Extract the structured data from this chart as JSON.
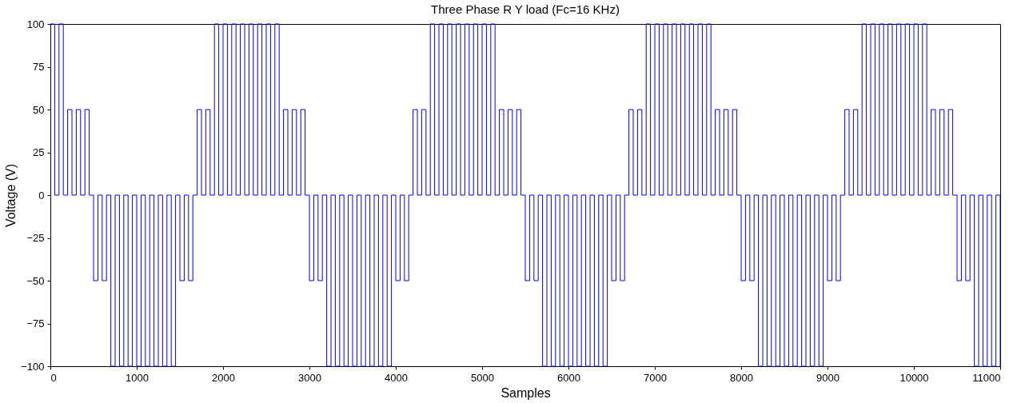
{
  "chart_data": {
    "type": "step",
    "title": "Three Phase R Y load (Fc=16 KHz)",
    "xlabel": "Samples",
    "ylabel": "Voltage (V)",
    "xlim": [
      0,
      11000
    ],
    "ylim": [
      -100,
      100
    ],
    "xticks": [
      0,
      1000,
      2000,
      3000,
      4000,
      5000,
      6000,
      7000,
      8000,
      9000,
      10000,
      11000
    ],
    "yticks": [
      -100,
      -75,
      -50,
      -25,
      0,
      25,
      50,
      75,
      100
    ],
    "grid": false,
    "line_style": "solid",
    "series": [
      {
        "color": "#0000ff",
        "x": [
          0,
          50,
          100,
          150,
          200,
          250,
          300,
          350,
          400,
          450,
          500,
          550,
          600,
          650,
          700,
          750,
          800,
          850,
          900,
          950,
          1000,
          1050,
          1100,
          1150,
          1200,
          1250,
          1300,
          1350,
          1400,
          1450,
          1500,
          1550,
          1600,
          1650,
          1700,
          1750,
          1800,
          1850,
          1900,
          1950,
          2000,
          2050,
          2100,
          2150,
          2200,
          2250,
          2300,
          2350,
          2400,
          2450,
          2500,
          2550,
          2600,
          2650,
          2700,
          2750,
          2800,
          2850,
          2900,
          2950,
          3000,
          3050,
          3100,
          3150,
          3200,
          3250,
          3300,
          3350,
          3400,
          3450,
          3500,
          3550,
          3600,
          3650,
          3700,
          3750,
          3800,
          3850,
          3900,
          3950,
          4000,
          4050,
          4100,
          4150,
          4200,
          4250,
          4300,
          4350,
          4400,
          4450,
          4500,
          4550,
          4600,
          4650,
          4700,
          4750,
          4800,
          4850,
          4900,
          4950,
          5000,
          5050,
          5100,
          5150,
          5200,
          5250,
          5300,
          5350,
          5400,
          5450,
          5500,
          5550,
          5600,
          5650,
          5700,
          5750,
          5800,
          5850,
          5900,
          5950,
          6000,
          6050,
          6100,
          6150,
          6200,
          6250,
          6300,
          6350,
          6400,
          6450,
          6500,
          6550,
          6600,
          6650,
          6700,
          6750,
          6800,
          6850,
          6900,
          6950,
          7000,
          7050,
          7100,
          7150,
          7200,
          7250,
          7300,
          7350,
          7400,
          7450,
          7500,
          7550,
          7600,
          7650,
          7700,
          7750,
          7800,
          7850,
          7900,
          7950,
          8000,
          8050,
          8100,
          8150,
          8200,
          8250,
          8300,
          8350,
          8400,
          8450,
          8500,
          8550,
          8600,
          8650,
          8700,
          8750,
          8800,
          8850,
          8900,
          8950,
          9000,
          9050,
          9100,
          9150,
          9200,
          9250,
          9300,
          9350,
          9400,
          9450,
          9500,
          9550,
          9600,
          9650,
          9700,
          9750,
          9800,
          9850,
          9900,
          9950,
          10000,
          10050,
          10100,
          10150,
          10200,
          10250,
          10300,
          10350,
          10400,
          10450,
          10500,
          10550,
          10600,
          10650,
          10700,
          10750,
          10800,
          10850,
          10900,
          10950,
          11000
        ],
        "values": [
          100,
          0,
          100,
          0,
          50,
          0,
          50,
          0,
          50,
          0,
          -50,
          0,
          -50,
          0,
          -100,
          0,
          -100,
          0,
          -100,
          0,
          -100,
          0,
          -100,
          0,
          -100,
          0,
          -100,
          0,
          -100,
          0,
          -50,
          0,
          -50,
          0,
          50,
          0,
          50,
          0,
          100,
          0,
          100,
          0,
          100,
          0,
          100,
          0,
          100,
          0,
          100,
          0,
          100,
          0,
          100,
          0,
          50,
          0,
          50,
          0,
          50,
          0,
          -50,
          0,
          -50,
          0,
          -100,
          0,
          -100,
          0,
          -100,
          0,
          -100,
          0,
          -100,
          0,
          -100,
          0,
          -100,
          0,
          -100,
          0,
          -50,
          0,
          -50,
          0,
          50,
          0,
          50,
          0,
          100,
          0,
          100,
          0,
          100,
          0,
          100,
          0,
          100,
          0,
          100,
          0,
          100,
          0,
          100,
          0,
          50,
          0,
          50,
          0,
          50,
          0,
          -50,
          0,
          -50,
          0,
          -100,
          0,
          -100,
          0,
          -100,
          0,
          -100,
          0,
          -100,
          0,
          -100,
          0,
          -100,
          0,
          -100,
          0,
          -50,
          0,
          -50,
          0,
          50,
          0,
          50,
          0,
          100,
          0,
          100,
          0,
          100,
          0,
          100,
          0,
          100,
          0,
          100,
          0,
          100,
          0,
          100,
          0,
          50,
          0,
          50,
          0,
          50,
          0,
          -50,
          0,
          -50,
          0,
          -100,
          0,
          -100,
          0,
          -100,
          0,
          -100,
          0,
          -100,
          0,
          -100,
          0,
          -100,
          0,
          -100,
          0,
          -50,
          0,
          -50,
          0,
          50,
          0,
          50,
          0,
          100,
          0,
          100,
          0,
          100,
          0,
          100,
          0,
          100,
          0,
          100,
          0,
          100,
          0,
          100,
          0,
          50,
          0,
          50,
          0,
          50,
          0,
          -50,
          0,
          -50,
          0,
          -100,
          0,
          -100,
          0,
          -100,
          0,
          -100
        ]
      }
    ]
  }
}
